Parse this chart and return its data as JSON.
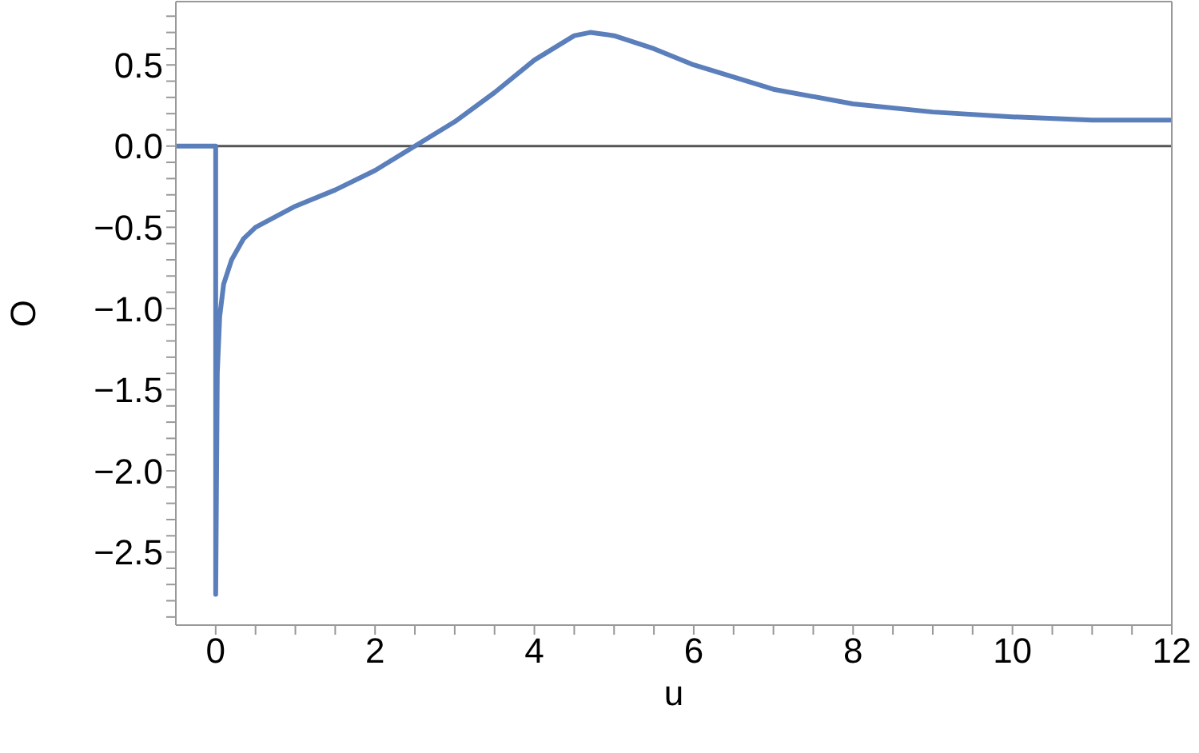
{
  "chart_data": {
    "type": "line",
    "xlabel": "u",
    "ylabel": "O",
    "xlim": [
      -0.5,
      12
    ],
    "ylim": [
      -2.95,
      0.89
    ],
    "xticks": [
      0,
      {
        "value": 0.5,
        "label": null
      },
      {
        "value": 1,
        "label": null
      },
      {
        "value": 1.5,
        "label": null
      },
      2,
      {
        "value": 2.5,
        "label": null
      },
      {
        "value": 3,
        "label": null
      },
      {
        "value": 3.5,
        "label": null
      },
      4,
      {
        "value": 4.5,
        "label": null
      },
      {
        "value": 5,
        "label": null
      },
      {
        "value": 5.5,
        "label": null
      },
      6,
      {
        "value": 6.5,
        "label": null
      },
      {
        "value": 7,
        "label": null
      },
      {
        "value": 7.5,
        "label": null
      },
      8,
      {
        "value": 8.5,
        "label": null
      },
      {
        "value": 9,
        "label": null
      },
      {
        "value": 9.5,
        "label": null
      },
      10,
      {
        "value": 10.5,
        "label": null
      },
      {
        "value": 11,
        "label": null
      },
      {
        "value": 11.5,
        "label": null
      },
      12
    ],
    "yticks": [
      {
        "value": -2.9,
        "label": null
      },
      {
        "value": -2.8,
        "label": null
      },
      {
        "value": -2.7,
        "label": null
      },
      {
        "value": -2.6,
        "label": null
      },
      {
        "value": -2.5,
        "label": "−2.5"
      },
      {
        "value": -2.4,
        "label": null
      },
      {
        "value": -2.3,
        "label": null
      },
      {
        "value": -2.2,
        "label": null
      },
      {
        "value": -2.1,
        "label": null
      },
      {
        "value": -2.0,
        "label": "−2.0"
      },
      {
        "value": -1.9,
        "label": null
      },
      {
        "value": -1.8,
        "label": null
      },
      {
        "value": -1.7,
        "label": null
      },
      {
        "value": -1.6,
        "label": null
      },
      {
        "value": -1.5,
        "label": "−1.5"
      },
      {
        "value": -1.4,
        "label": null
      },
      {
        "value": -1.3,
        "label": null
      },
      {
        "value": -1.2,
        "label": null
      },
      {
        "value": -1.1,
        "label": null
      },
      {
        "value": -1.0,
        "label": "−1.0"
      },
      {
        "value": -0.9,
        "label": null
      },
      {
        "value": -0.8,
        "label": null
      },
      {
        "value": -0.7,
        "label": null
      },
      {
        "value": -0.6,
        "label": null
      },
      {
        "value": -0.5,
        "label": "−0.5"
      },
      {
        "value": -0.4,
        "label": null
      },
      {
        "value": -0.3,
        "label": null
      },
      {
        "value": -0.2,
        "label": null
      },
      {
        "value": -0.1,
        "label": null
      },
      {
        "value": 0,
        "label": "0.0"
      },
      {
        "value": 0.1,
        "label": null
      },
      {
        "value": 0.2,
        "label": null
      },
      {
        "value": 0.3,
        "label": null
      },
      {
        "value": 0.4,
        "label": null
      },
      {
        "value": 0.5,
        "label": "0.5"
      },
      {
        "value": 0.6,
        "label": null
      },
      {
        "value": 0.7,
        "label": null
      },
      {
        "value": 0.8,
        "label": null
      }
    ],
    "ref_lines": [
      {
        "axis": "y",
        "value": 0,
        "color": "#555555"
      }
    ],
    "grid": false,
    "legend": false,
    "marker": "none",
    "line_style": "solid",
    "series": [
      {
        "color": "#5b7fbb",
        "x": [
          -0.5,
          0,
          0,
          0.02,
          0.05,
          0.1,
          0.2,
          0.35,
          0.5,
          1,
          1.5,
          2,
          2.5,
          3,
          3.5,
          4,
          4.5,
          4.7,
          5,
          5.5,
          6,
          7,
          8,
          9,
          10,
          11,
          12
        ],
        "values": [
          0,
          0,
          -2.76,
          -1.4,
          -1.05,
          -0.85,
          -0.7,
          -0.57,
          -0.5,
          -0.37,
          -0.27,
          -0.15,
          0,
          0.15,
          0.33,
          0.53,
          0.68,
          0.7,
          0.68,
          0.6,
          0.5,
          0.35,
          0.26,
          0.21,
          0.18,
          0.16,
          0.16
        ]
      }
    ]
  }
}
